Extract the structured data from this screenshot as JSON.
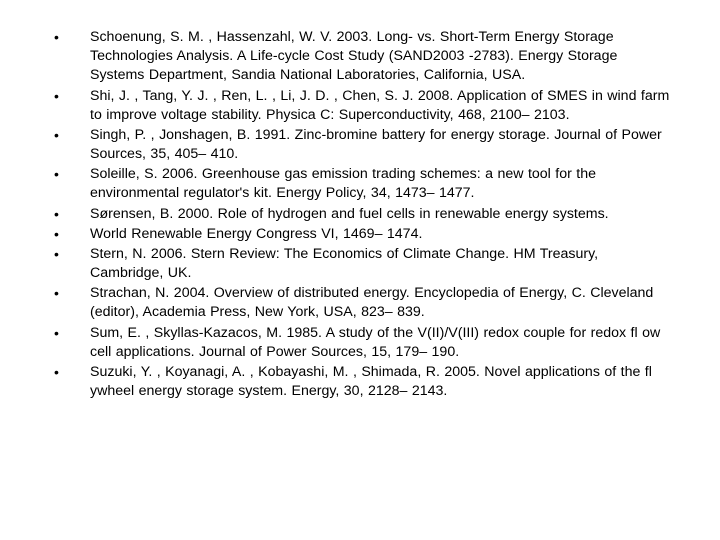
{
  "layout": {
    "background": "#ffffff",
    "text_color": "#000000",
    "font_family": "Arial",
    "font_size_pt": 11,
    "line_height": 1.35,
    "bullet_char": "•"
  },
  "references": [
    {
      "text": "Schoenung, S. M. , Hassenzahl, W. V. 2003. Long- vs. Short-Term Energy Storage Technologies Analysis. A Life-cycle Cost Study (SAND2003 -2783). Energy Storage Systems Department, Sandia National Laboratories, California, USA."
    },
    {
      "text": "Shi, J. , Tang, Y. J. , Ren, L. , Li, J. D. , Chen, S. J. 2008. Application of SMES in wind farm to improve voltage stability. Physica C: Superconductivity, 468, 2100– 2103."
    },
    {
      "text": "Singh, P. , Jonshagen, B. 1991. Zinc-bromine battery for energy storage. Journal of Power Sources, 35, 405– 410."
    },
    {
      "text": "Soleille, S. 2006. Greenhouse gas emission trading schemes: a new tool for the environmental regulator's kit. Energy Policy, 34, 1473– 1477."
    },
    {
      "text": "Sørensen, B. 2000. Role of hydrogen and fuel cells in renewable energy systems."
    },
    {
      "text": "World Renewable Energy Congress VI, 1469– 1474."
    },
    {
      "text": "Stern, N. 2006. Stern Review: The Economics of Climate Change. HM Treasury, Cambridge, UK."
    },
    {
      "text": "Strachan, N. 2004. Overview of distributed energy. Encyclopedia of Energy, C. Cleveland (editor), Academia Press, New York, USA, 823– 839."
    },
    {
      "text": "Sum, E. , Skyllas-Kazacos, M. 1985. A study of the V(II)/V(III) redox couple for redox fl ow cell applications. Journal of Power Sources, 15, 179– 190."
    },
    {
      "text": "Suzuki, Y. , Koyanagi, A. , Kobayashi, M. , Shimada, R. 2005. Novel applications of the fl ywheel energy storage system. Energy, 30, 2128– 2143."
    }
  ]
}
